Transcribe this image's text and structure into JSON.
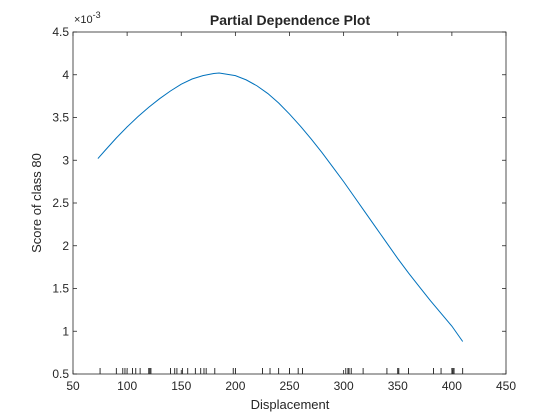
{
  "chart_data": {
    "type": "line",
    "title": "Partial Dependence Plot",
    "xlabel": "Displacement",
    "ylabel": "Score of class 80",
    "exponent_label": "×10",
    "exponent_power": "-3",
    "xlim": [
      50,
      450
    ],
    "ylim": [
      0.5,
      4.5
    ],
    "x_ticks": [
      50,
      100,
      150,
      200,
      250,
      300,
      350,
      400,
      450
    ],
    "y_ticks": [
      0.5,
      1,
      1.5,
      2,
      2.5,
      3,
      3.5,
      4,
      4.5
    ],
    "x_tick_labels": [
      "50",
      "100",
      "150",
      "200",
      "250",
      "300",
      "350",
      "400",
      "450"
    ],
    "y_tick_labels": [
      "0.5",
      "1",
      "1.5",
      "2",
      "2.5",
      "3",
      "3.5",
      "4",
      "4.5"
    ],
    "grid": false,
    "line_color": "#0072BD",
    "series": [
      {
        "x": [
          73,
          80,
          90,
          100,
          110,
          120,
          130,
          140,
          150,
          160,
          170,
          180,
          185,
          190,
          200,
          210,
          220,
          230,
          240,
          250,
          260,
          270,
          280,
          290,
          300,
          310,
          320,
          330,
          340,
          350,
          360,
          370,
          380,
          390,
          400,
          410
        ],
        "y": [
          3.02,
          3.12,
          3.26,
          3.39,
          3.51,
          3.62,
          3.72,
          3.81,
          3.89,
          3.95,
          3.99,
          4.015,
          4.02,
          4.01,
          3.99,
          3.94,
          3.87,
          3.78,
          3.67,
          3.54,
          3.4,
          3.25,
          3.09,
          2.92,
          2.75,
          2.57,
          2.39,
          2.21,
          2.03,
          1.85,
          1.68,
          1.52,
          1.36,
          1.21,
          1.06,
          0.88
        ]
      }
    ],
    "rug_x": [
      75,
      90,
      96,
      98,
      100,
      105,
      108,
      112,
      120,
      121,
      122,
      140,
      144,
      146,
      151,
      156,
      163,
      168,
      171,
      173,
      181,
      198,
      200,
      225,
      232,
      240,
      250,
      258,
      262,
      302,
      304,
      305,
      307,
      318,
      340,
      350,
      351,
      360,
      383,
      390,
      400,
      401,
      402,
      410
    ]
  }
}
